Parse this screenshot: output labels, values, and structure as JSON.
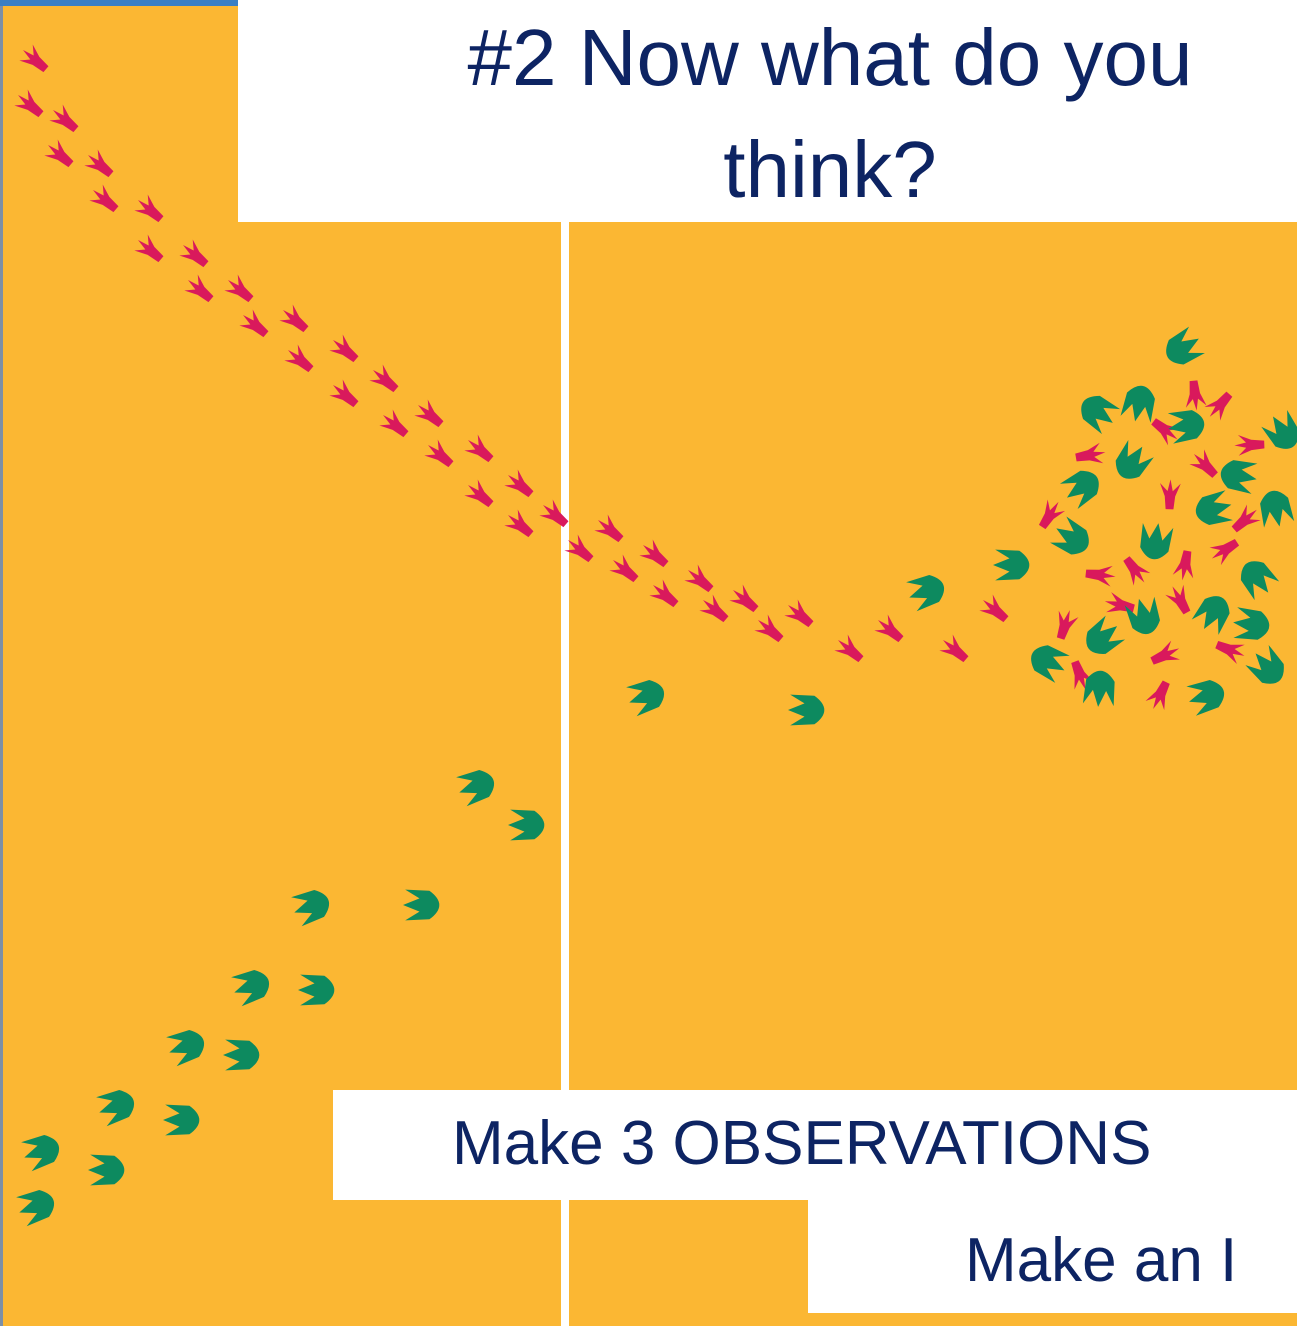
{
  "title": "#2 Now what do you think?",
  "prompts": [
    "Make 3 OBSERVATIONS",
    "Make an I"
  ]
}
